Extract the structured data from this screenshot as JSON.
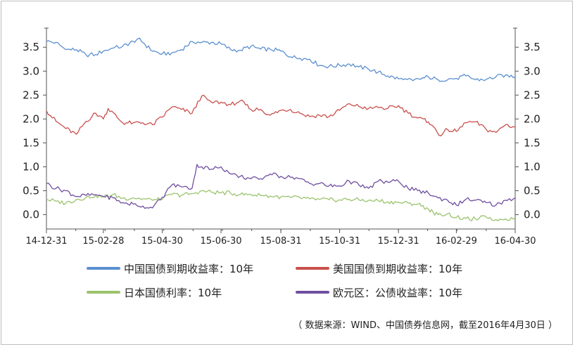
{
  "chart_data": {
    "type": "line",
    "x_ticks": [
      "14-12-31",
      "15-02-28",
      "15-04-30",
      "15-06-30",
      "15-08-31",
      "15-10-31",
      "15-12-31",
      "16-02-29",
      "16-04-30"
    ],
    "x_range": [
      "2014-12-31",
      "2016-04-30"
    ],
    "y_ticks": [
      "3.5",
      "3.0",
      "2.5",
      "2.0",
      "1.5",
      "1.0",
      "0.5",
      "0.0"
    ],
    "y_range": [
      -0.3,
      3.9
    ],
    "grid": false,
    "legend_position": "bottom",
    "series": [
      {
        "name": "中国国债到期收益率：10年",
        "color": "#5b8fd0",
        "points": [
          [
            "2014-12-31",
            3.62
          ],
          [
            "2015-01-10",
            3.6
          ],
          [
            "2015-01-20",
            3.45
          ],
          [
            "2015-01-31",
            3.45
          ],
          [
            "2015-02-10",
            3.34
          ],
          [
            "2015-02-20",
            3.35
          ],
          [
            "2015-02-28",
            3.42
          ],
          [
            "2015-03-10",
            3.48
          ],
          [
            "2015-03-20",
            3.52
          ],
          [
            "2015-03-31",
            3.62
          ],
          [
            "2015-04-05",
            3.68
          ],
          [
            "2015-04-10",
            3.6
          ],
          [
            "2015-04-20",
            3.42
          ],
          [
            "2015-04-30",
            3.36
          ],
          [
            "2015-05-10",
            3.38
          ],
          [
            "2015-05-20",
            3.45
          ],
          [
            "2015-05-31",
            3.62
          ],
          [
            "2015-06-10",
            3.6
          ],
          [
            "2015-06-20",
            3.6
          ],
          [
            "2015-06-30",
            3.57
          ],
          [
            "2015-07-10",
            3.45
          ],
          [
            "2015-07-20",
            3.44
          ],
          [
            "2015-07-31",
            3.52
          ],
          [
            "2015-08-10",
            3.46
          ],
          [
            "2015-08-20",
            3.46
          ],
          [
            "2015-08-31",
            3.42
          ],
          [
            "2015-09-10",
            3.3
          ],
          [
            "2015-09-20",
            3.27
          ],
          [
            "2015-09-30",
            3.25
          ],
          [
            "2015-10-10",
            3.12
          ],
          [
            "2015-10-20",
            3.1
          ],
          [
            "2015-10-31",
            3.12
          ],
          [
            "2015-11-10",
            3.15
          ],
          [
            "2015-11-20",
            3.09
          ],
          [
            "2015-11-30",
            3.04
          ],
          [
            "2015-12-10",
            2.98
          ],
          [
            "2015-12-20",
            2.9
          ],
          [
            "2015-12-31",
            2.84
          ],
          [
            "2016-01-05",
            2.82
          ],
          [
            "2016-01-15",
            2.8
          ],
          [
            "2016-01-31",
            2.88
          ],
          [
            "2016-02-10",
            2.82
          ],
          [
            "2016-02-29",
            2.85
          ],
          [
            "2016-03-10",
            2.9
          ],
          [
            "2016-03-20",
            2.82
          ],
          [
            "2016-03-31",
            2.83
          ],
          [
            "2016-04-10",
            2.88
          ],
          [
            "2016-04-20",
            2.92
          ],
          [
            "2016-04-30",
            2.88
          ]
        ]
      },
      {
        "name": "美国国债到期收益率：10年",
        "color": "#c9504c",
        "points": [
          [
            "2014-12-31",
            2.17
          ],
          [
            "2015-01-10",
            1.95
          ],
          [
            "2015-01-20",
            1.8
          ],
          [
            "2015-01-31",
            1.68
          ],
          [
            "2015-02-10",
            1.95
          ],
          [
            "2015-02-20",
            2.12
          ],
          [
            "2015-02-28",
            2.0
          ],
          [
            "2015-03-05",
            2.22
          ],
          [
            "2015-03-20",
            1.92
          ],
          [
            "2015-03-31",
            1.92
          ],
          [
            "2015-04-10",
            1.92
          ],
          [
            "2015-04-20",
            1.88
          ],
          [
            "2015-04-30",
            2.04
          ],
          [
            "2015-05-10",
            2.25
          ],
          [
            "2015-05-20",
            2.2
          ],
          [
            "2015-05-31",
            2.12
          ],
          [
            "2015-06-10",
            2.48
          ],
          [
            "2015-06-20",
            2.35
          ],
          [
            "2015-06-30",
            2.35
          ],
          [
            "2015-07-10",
            2.3
          ],
          [
            "2015-07-20",
            2.38
          ],
          [
            "2015-07-31",
            2.2
          ],
          [
            "2015-08-10",
            2.2
          ],
          [
            "2015-08-20",
            2.08
          ],
          [
            "2015-08-31",
            2.18
          ],
          [
            "2015-09-10",
            2.2
          ],
          [
            "2015-09-20",
            2.12
          ],
          [
            "2015-09-30",
            2.05
          ],
          [
            "2015-10-10",
            2.08
          ],
          [
            "2015-10-20",
            2.05
          ],
          [
            "2015-10-31",
            2.18
          ],
          [
            "2015-11-10",
            2.32
          ],
          [
            "2015-11-20",
            2.26
          ],
          [
            "2015-11-30",
            2.22
          ],
          [
            "2015-12-10",
            2.24
          ],
          [
            "2015-12-20",
            2.22
          ],
          [
            "2015-12-31",
            2.28
          ],
          [
            "2016-01-10",
            2.12
          ],
          [
            "2016-01-20",
            2.02
          ],
          [
            "2016-01-31",
            1.94
          ],
          [
            "2016-02-05",
            1.85
          ],
          [
            "2016-02-11",
            1.66
          ],
          [
            "2016-02-20",
            1.78
          ],
          [
            "2016-02-29",
            1.74
          ],
          [
            "2016-03-10",
            1.92
          ],
          [
            "2016-03-20",
            1.94
          ],
          [
            "2016-03-31",
            1.78
          ],
          [
            "2016-04-10",
            1.72
          ],
          [
            "2016-04-20",
            1.88
          ],
          [
            "2016-04-30",
            1.83
          ]
        ]
      },
      {
        "name": "日本国债利率：10年",
        "color": "#9bc36d",
        "points": [
          [
            "2014-12-31",
            0.32
          ],
          [
            "2015-01-10",
            0.28
          ],
          [
            "2015-01-20",
            0.24
          ],
          [
            "2015-01-31",
            0.32
          ],
          [
            "2015-02-10",
            0.36
          ],
          [
            "2015-02-20",
            0.4
          ],
          [
            "2015-02-28",
            0.37
          ],
          [
            "2015-03-10",
            0.42
          ],
          [
            "2015-03-20",
            0.34
          ],
          [
            "2015-03-31",
            0.35
          ],
          [
            "2015-04-10",
            0.33
          ],
          [
            "2015-04-20",
            0.3
          ],
          [
            "2015-04-30",
            0.32
          ],
          [
            "2015-05-10",
            0.42
          ],
          [
            "2015-05-20",
            0.41
          ],
          [
            "2015-05-31",
            0.44
          ],
          [
            "2015-06-10",
            0.5
          ],
          [
            "2015-06-20",
            0.47
          ],
          [
            "2015-06-30",
            0.46
          ],
          [
            "2015-07-10",
            0.45
          ],
          [
            "2015-07-20",
            0.42
          ],
          [
            "2015-07-31",
            0.42
          ],
          [
            "2015-08-10",
            0.4
          ],
          [
            "2015-08-20",
            0.39
          ],
          [
            "2015-08-31",
            0.37
          ],
          [
            "2015-09-10",
            0.36
          ],
          [
            "2015-09-20",
            0.35
          ],
          [
            "2015-09-30",
            0.33
          ],
          [
            "2015-10-10",
            0.32
          ],
          [
            "2015-10-20",
            0.31
          ],
          [
            "2015-10-31",
            0.31
          ],
          [
            "2015-11-10",
            0.32
          ],
          [
            "2015-11-20",
            0.31
          ],
          [
            "2015-11-30",
            0.3
          ],
          [
            "2015-12-10",
            0.29
          ],
          [
            "2015-12-20",
            0.27
          ],
          [
            "2015-12-31",
            0.26
          ],
          [
            "2016-01-10",
            0.24
          ],
          [
            "2016-01-20",
            0.22
          ],
          [
            "2016-01-31",
            0.12
          ],
          [
            "2016-02-05",
            0.05
          ],
          [
            "2016-02-10",
            0.0
          ],
          [
            "2016-02-20",
            0.02
          ],
          [
            "2016-02-29",
            -0.06
          ],
          [
            "2016-03-10",
            -0.08
          ],
          [
            "2016-03-20",
            -0.09
          ],
          [
            "2016-03-31",
            -0.05
          ],
          [
            "2016-04-10",
            -0.1
          ],
          [
            "2016-04-20",
            -0.09
          ],
          [
            "2016-04-30",
            -0.07
          ]
        ]
      },
      {
        "name": "欧元区：公债收益率：10年",
        "color": "#6f4fa0",
        "points": [
          [
            "2014-12-31",
            0.65
          ],
          [
            "2015-01-10",
            0.55
          ],
          [
            "2015-01-20",
            0.5
          ],
          [
            "2015-01-31",
            0.38
          ],
          [
            "2015-02-10",
            0.4
          ],
          [
            "2015-02-20",
            0.42
          ],
          [
            "2015-02-28",
            0.38
          ],
          [
            "2015-03-10",
            0.35
          ],
          [
            "2015-03-20",
            0.25
          ],
          [
            "2015-03-31",
            0.22
          ],
          [
            "2015-04-10",
            0.18
          ],
          [
            "2015-04-20",
            0.14
          ],
          [
            "2015-04-30",
            0.36
          ],
          [
            "2015-05-10",
            0.62
          ],
          [
            "2015-05-20",
            0.58
          ],
          [
            "2015-05-31",
            0.55
          ],
          [
            "2015-06-05",
            1.05
          ],
          [
            "2015-06-10",
            1.0
          ],
          [
            "2015-06-20",
            0.95
          ],
          [
            "2015-06-30",
            1.0
          ],
          [
            "2015-07-10",
            0.85
          ],
          [
            "2015-07-20",
            0.8
          ],
          [
            "2015-07-31",
            0.75
          ],
          [
            "2015-08-10",
            0.75
          ],
          [
            "2015-08-20",
            0.85
          ],
          [
            "2015-08-31",
            0.8
          ],
          [
            "2015-09-10",
            0.78
          ],
          [
            "2015-09-20",
            0.75
          ],
          [
            "2015-09-30",
            0.65
          ],
          [
            "2015-10-10",
            0.65
          ],
          [
            "2015-10-20",
            0.6
          ],
          [
            "2015-10-31",
            0.6
          ],
          [
            "2015-11-10",
            0.7
          ],
          [
            "2015-11-20",
            0.62
          ],
          [
            "2015-11-30",
            0.55
          ],
          [
            "2015-12-10",
            0.7
          ],
          [
            "2015-12-20",
            0.68
          ],
          [
            "2015-12-31",
            0.7
          ],
          [
            "2016-01-10",
            0.55
          ],
          [
            "2016-01-20",
            0.5
          ],
          [
            "2016-01-31",
            0.45
          ],
          [
            "2016-02-10",
            0.35
          ],
          [
            "2016-02-20",
            0.3
          ],
          [
            "2016-02-29",
            0.2
          ],
          [
            "2016-03-10",
            0.32
          ],
          [
            "2016-03-20",
            0.3
          ],
          [
            "2016-03-31",
            0.25
          ],
          [
            "2016-04-10",
            0.2
          ],
          [
            "2016-04-20",
            0.3
          ],
          [
            "2016-04-30",
            0.35
          ]
        ]
      }
    ]
  },
  "source_note": "（ 数据来源：WIND、中国债券信息网，截至2016年4月30日 ）"
}
